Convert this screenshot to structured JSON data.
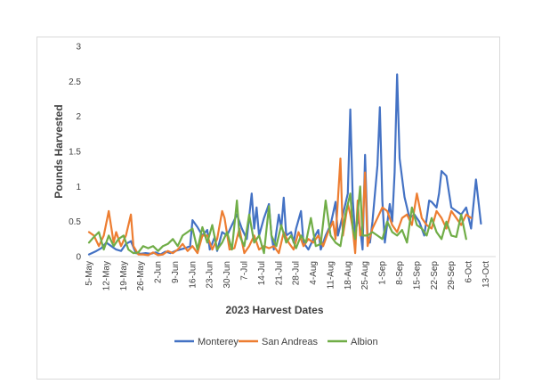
{
  "chart_data": {
    "type": "line",
    "title": "",
    "xlabel": "2023 Harvest Dates",
    "ylabel": "Pounds Harvested",
    "ylim": [
      0,
      3
    ],
    "yticks": [
      "0",
      "0.5",
      "1",
      "1.5",
      "2",
      "2.5",
      "3"
    ],
    "grid": false,
    "legend_position": "bottom",
    "x_tick_labels": [
      "5-May",
      "12-May",
      "19-May",
      "26-May",
      "2-Jun",
      "9-Jun",
      "16-Jun",
      "23-Jun",
      "30-Jun",
      "7-Jul",
      "14-Jul",
      "21-Jul",
      "28-Jul",
      "4-Aug",
      "11-Aug",
      "18-Aug",
      "25-Aug",
      "1-Sep",
      "8-Sep",
      "15-Sep",
      "22-Sep",
      "29-Sep",
      "6-Oct",
      "13-Oct"
    ],
    "x_tick_days": [
      0,
      7,
      14,
      21,
      28,
      35,
      42,
      49,
      56,
      63,
      70,
      77,
      84,
      91,
      98,
      105,
      112,
      119,
      126,
      133,
      140,
      147,
      154,
      161
    ],
    "x_range_days": [
      0,
      165
    ],
    "series": [
      {
        "name": "Monterey",
        "color": "#4472C4",
        "points": [
          [
            0,
            0.03
          ],
          [
            3,
            0.08
          ],
          [
            5,
            0.12
          ],
          [
            7,
            0.2
          ],
          [
            9,
            0.15
          ],
          [
            11,
            0.1
          ],
          [
            13,
            0.08
          ],
          [
            15,
            0.18
          ],
          [
            17,
            0.22
          ],
          [
            19,
            0.05
          ],
          [
            21,
            0.04
          ],
          [
            23,
            0.05
          ],
          [
            25,
            0.04
          ],
          [
            27,
            0.06
          ],
          [
            29,
            0.03
          ],
          [
            31,
            0.07
          ],
          [
            33,
            0.05
          ],
          [
            35,
            0.08
          ],
          [
            37,
            0.1
          ],
          [
            39,
            0.12
          ],
          [
            41,
            0.15
          ],
          [
            42,
            0.52
          ],
          [
            44,
            0.42
          ],
          [
            46,
            0.3
          ],
          [
            48,
            0.38
          ],
          [
            49,
            0.1
          ],
          [
            51,
            0.28
          ],
          [
            52,
            0.08
          ],
          [
            54,
            0.35
          ],
          [
            56,
            0.3
          ],
          [
            58,
            0.45
          ],
          [
            60,
            0.6
          ],
          [
            62,
            0.4
          ],
          [
            64,
            0.25
          ],
          [
            66,
            0.9
          ],
          [
            67,
            0.4
          ],
          [
            68,
            0.7
          ],
          [
            69,
            0.3
          ],
          [
            71,
            0.55
          ],
          [
            73,
            0.75
          ],
          [
            74,
            0.3
          ],
          [
            75,
            0.1
          ],
          [
            77,
            0.6
          ],
          [
            78,
            0.4
          ],
          [
            79,
            0.84
          ],
          [
            80,
            0.3
          ],
          [
            82,
            0.35
          ],
          [
            83,
            0.2
          ],
          [
            84,
            0.4
          ],
          [
            86,
            0.65
          ],
          [
            87,
            0.2
          ],
          [
            89,
            0.1
          ],
          [
            91,
            0.25
          ],
          [
            93,
            0.38
          ],
          [
            94,
            0.1
          ],
          [
            96,
            0.3
          ],
          [
            98,
            0.45
          ],
          [
            100,
            0.78
          ],
          [
            101,
            0.3
          ],
          [
            103,
            0.6
          ],
          [
            105,
            0.9
          ],
          [
            106,
            2.1
          ],
          [
            107,
            0.8
          ],
          [
            108,
            0.3
          ],
          [
            109,
            0.55
          ],
          [
            110,
            0.4
          ],
          [
            111,
            0.1
          ],
          [
            112,
            1.45
          ],
          [
            113,
            0.3
          ],
          [
            114,
            0.2
          ],
          [
            115,
            0.5
          ],
          [
            117,
            1.3
          ],
          [
            118,
            2.13
          ],
          [
            119,
            0.8
          ],
          [
            120,
            0.2
          ],
          [
            122,
            0.75
          ],
          [
            123,
            0.5
          ],
          [
            124,
            1.2
          ],
          [
            125,
            2.6
          ],
          [
            126,
            1.4
          ],
          [
            128,
            0.85
          ],
          [
            130,
            0.55
          ],
          [
            132,
            0.6
          ],
          [
            134,
            0.5
          ],
          [
            136,
            0.3
          ],
          [
            138,
            0.8
          ],
          [
            139,
            0.78
          ],
          [
            141,
            0.7
          ],
          [
            142,
            0.9
          ],
          [
            143,
            1.22
          ],
          [
            145,
            1.15
          ],
          [
            147,
            0.7
          ],
          [
            149,
            0.65
          ],
          [
            151,
            0.6
          ],
          [
            153,
            0.7
          ],
          [
            155,
            0.4
          ],
          [
            157,
            1.1
          ],
          [
            159,
            0.47
          ]
        ]
      },
      {
        "name": "San Andreas",
        "color": "#ED7D31",
        "points": [
          [
            0,
            0.35
          ],
          [
            2,
            0.3
          ],
          [
            4,
            0.15
          ],
          [
            6,
            0.3
          ],
          [
            8,
            0.65
          ],
          [
            10,
            0.2
          ],
          [
            11,
            0.35
          ],
          [
            13,
            0.15
          ],
          [
            15,
            0.3
          ],
          [
            17,
            0.6
          ],
          [
            18,
            0.15
          ],
          [
            20,
            0.03
          ],
          [
            22,
            0.03
          ],
          [
            24,
            0.02
          ],
          [
            26,
            0.06
          ],
          [
            28,
            0.02
          ],
          [
            30,
            0.03
          ],
          [
            32,
            0.08
          ],
          [
            34,
            0.05
          ],
          [
            36,
            0.1
          ],
          [
            38,
            0.18
          ],
          [
            40,
            0.08
          ],
          [
            42,
            0.15
          ],
          [
            44,
            0.05
          ],
          [
            46,
            0.3
          ],
          [
            48,
            0.3
          ],
          [
            50,
            0.1
          ],
          [
            52,
            0.25
          ],
          [
            54,
            0.65
          ],
          [
            55,
            0.55
          ],
          [
            57,
            0.1
          ],
          [
            59,
            0.12
          ],
          [
            61,
            0.4
          ],
          [
            63,
            0.05
          ],
          [
            65,
            0.15
          ],
          [
            67,
            0.3
          ],
          [
            69,
            0.1
          ],
          [
            71,
            0.15
          ],
          [
            73,
            0.12
          ],
          [
            75,
            0.15
          ],
          [
            77,
            0.05
          ],
          [
            79,
            0.35
          ],
          [
            81,
            0.2
          ],
          [
            83,
            0.1
          ],
          [
            85,
            0.35
          ],
          [
            87,
            0.15
          ],
          [
            89,
            0.25
          ],
          [
            91,
            0.2
          ],
          [
            93,
            0.3
          ],
          [
            95,
            0.15
          ],
          [
            97,
            0.35
          ],
          [
            99,
            0.5
          ],
          [
            100,
            0.25
          ],
          [
            102,
            1.4
          ],
          [
            103,
            0.3
          ],
          [
            105,
            0.75
          ],
          [
            106,
            0.6
          ],
          [
            107,
            0.4
          ],
          [
            108,
            0.05
          ],
          [
            109,
            0.8
          ],
          [
            110,
            0.3
          ],
          [
            111,
            0.4
          ],
          [
            112,
            1.2
          ],
          [
            113,
            0.15
          ],
          [
            115,
            0.4
          ],
          [
            117,
            0.55
          ],
          [
            119,
            0.7
          ],
          [
            121,
            0.65
          ],
          [
            123,
            0.45
          ],
          [
            125,
            0.35
          ],
          [
            127,
            0.55
          ],
          [
            129,
            0.6
          ],
          [
            131,
            0.45
          ],
          [
            133,
            0.9
          ],
          [
            135,
            0.55
          ],
          [
            137,
            0.45
          ],
          [
            139,
            0.4
          ],
          [
            141,
            0.65
          ],
          [
            143,
            0.55
          ],
          [
            145,
            0.4
          ],
          [
            147,
            0.65
          ],
          [
            149,
            0.55
          ],
          [
            151,
            0.45
          ],
          [
            153,
            0.6
          ],
          [
            155,
            0.55
          ]
        ]
      },
      {
        "name": "Albion",
        "color": "#70AD47",
        "points": [
          [
            0,
            0.2
          ],
          [
            2,
            0.28
          ],
          [
            4,
            0.35
          ],
          [
            6,
            0.1
          ],
          [
            8,
            0.3
          ],
          [
            10,
            0.15
          ],
          [
            12,
            0.25
          ],
          [
            14,
            0.3
          ],
          [
            16,
            0.1
          ],
          [
            18,
            0.05
          ],
          [
            20,
            0.06
          ],
          [
            22,
            0.15
          ],
          [
            24,
            0.12
          ],
          [
            26,
            0.15
          ],
          [
            28,
            0.08
          ],
          [
            30,
            0.15
          ],
          [
            32,
            0.18
          ],
          [
            34,
            0.25
          ],
          [
            36,
            0.15
          ],
          [
            38,
            0.3
          ],
          [
            40,
            0.35
          ],
          [
            42,
            0.4
          ],
          [
            44,
            0.1
          ],
          [
            46,
            0.42
          ],
          [
            48,
            0.2
          ],
          [
            50,
            0.45
          ],
          [
            52,
            0.1
          ],
          [
            54,
            0.2
          ],
          [
            56,
            0.35
          ],
          [
            58,
            0.1
          ],
          [
            60,
            0.8
          ],
          [
            61,
            0.3
          ],
          [
            63,
            0.15
          ],
          [
            65,
            0.6
          ],
          [
            67,
            0.2
          ],
          [
            69,
            0.3
          ],
          [
            71,
            0.05
          ],
          [
            73,
            0.72
          ],
          [
            74,
            0.3
          ],
          [
            76,
            0.15
          ],
          [
            78,
            0.45
          ],
          [
            80,
            0.2
          ],
          [
            82,
            0.3
          ],
          [
            84,
            0.12
          ],
          [
            86,
            0.3
          ],
          [
            88,
            0.2
          ],
          [
            90,
            0.55
          ],
          [
            92,
            0.15
          ],
          [
            94,
            0.18
          ],
          [
            96,
            0.8
          ],
          [
            98,
            0.3
          ],
          [
            100,
            0.2
          ],
          [
            102,
            0.15
          ],
          [
            104,
            0.6
          ],
          [
            106,
            0.9
          ],
          [
            107,
            0.4
          ],
          [
            108,
            0.25
          ],
          [
            110,
            1.0
          ],
          [
            111,
            0.3
          ],
          [
            113,
            0.3
          ],
          [
            115,
            0.35
          ],
          [
            117,
            0.3
          ],
          [
            119,
            0.25
          ],
          [
            121,
            0.5
          ],
          [
            123,
            0.35
          ],
          [
            125,
            0.3
          ],
          [
            127,
            0.38
          ],
          [
            129,
            0.2
          ],
          [
            131,
            0.7
          ],
          [
            133,
            0.45
          ],
          [
            135,
            0.4
          ],
          [
            137,
            0.3
          ],
          [
            139,
            0.55
          ],
          [
            141,
            0.35
          ],
          [
            143,
            0.25
          ],
          [
            145,
            0.5
          ],
          [
            147,
            0.3
          ],
          [
            149,
            0.28
          ],
          [
            151,
            0.6
          ],
          [
            153,
            0.25
          ]
        ]
      }
    ]
  }
}
